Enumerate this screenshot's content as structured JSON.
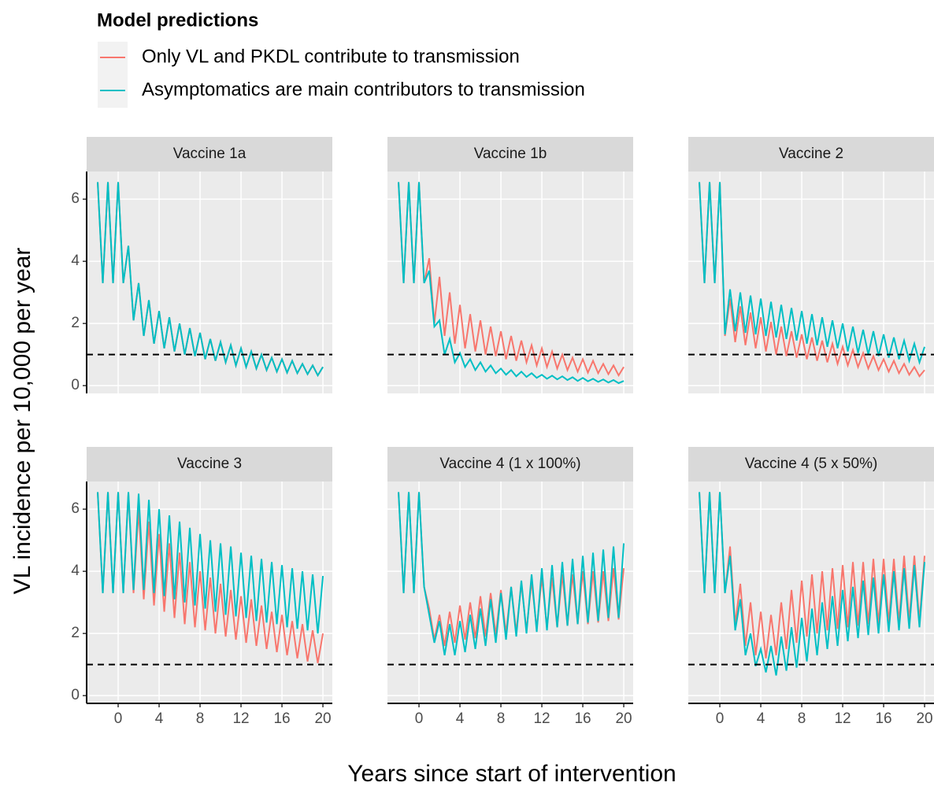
{
  "chart_data": {
    "type": "line",
    "legend_title": "Model predictions",
    "legend_position": "top-left",
    "x_label": "Years since start of intervention",
    "y_label": "VL incidence per 10,000 per year",
    "series": [
      {
        "name": "Only VL and PKDL contribute to transmission",
        "color": "#F8766D"
      },
      {
        "name": "Asymptomatics are main contributors to transmission",
        "color": "#00BFC4"
      }
    ],
    "xlim": [
      -3.08,
      20.92
    ],
    "xticks": [
      0,
      4,
      8,
      12,
      16,
      20
    ],
    "ylim": [
      -0.25,
      6.89
    ],
    "yticks": [
      0,
      2,
      4,
      6
    ],
    "hline": 1,
    "grid": true,
    "x": [
      -2,
      -1.5,
      -1,
      -0.5,
      0,
      0.5,
      1,
      1.5,
      2,
      2.5,
      3,
      3.5,
      4,
      4.5,
      5,
      5.5,
      6,
      6.5,
      7,
      7.5,
      8,
      8.5,
      9,
      9.5,
      10,
      10.5,
      11,
      11.5,
      12,
      12.5,
      13,
      13.5,
      14,
      14.5,
      15,
      15.5,
      16,
      16.5,
      17,
      17.5,
      18,
      18.5,
      19,
      19.5,
      20
    ],
    "facets": [
      {
        "title": "Vaccine 1a",
        "series": [
          {
            "values": [
              6.55,
              3.3,
              6.55,
              3.3,
              6.55,
              3.3,
              4.5,
              2.1,
              3.3,
              1.6,
              2.75,
              1.35,
              2.4,
              1.2,
              2.2,
              1.1,
              2.0,
              1.0,
              1.85,
              0.95,
              1.7,
              0.85,
              1.5,
              0.8,
              1.4,
              0.75,
              1.3,
              0.65,
              1.2,
              0.6,
              1.1,
              0.55,
              1.0,
              0.5,
              0.9,
              0.45,
              0.85,
              0.42,
              0.8,
              0.4,
              0.7,
              0.37,
              0.65,
              0.33,
              0.6
            ]
          },
          {
            "values": [
              6.55,
              3.3,
              6.55,
              3.3,
              6.55,
              3.3,
              4.5,
              2.1,
              3.3,
              1.6,
              2.75,
              1.35,
              2.4,
              1.2,
              2.2,
              1.1,
              2.0,
              1.0,
              1.85,
              0.95,
              1.7,
              0.85,
              1.5,
              0.8,
              1.4,
              0.75,
              1.3,
              0.65,
              1.2,
              0.6,
              1.1,
              0.55,
              1.0,
              0.5,
              0.9,
              0.45,
              0.85,
              0.42,
              0.8,
              0.4,
              0.7,
              0.37,
              0.65,
              0.33,
              0.6
            ]
          }
        ]
      },
      {
        "title": "Vaccine 1b",
        "series": [
          {
            "values": [
              6.55,
              3.3,
              6.55,
              3.3,
              6.55,
              3.3,
              4.1,
              2.0,
              3.5,
              1.6,
              3.0,
              1.35,
              2.6,
              1.2,
              2.3,
              1.1,
              2.1,
              1.0,
              1.9,
              0.95,
              1.75,
              0.85,
              1.6,
              0.8,
              1.45,
              0.75,
              1.3,
              0.65,
              1.2,
              0.6,
              1.1,
              0.55,
              1.0,
              0.5,
              0.9,
              0.45,
              0.85,
              0.42,
              0.8,
              0.4,
              0.7,
              0.37,
              0.65,
              0.33,
              0.6
            ]
          },
          {
            "values": [
              6.55,
              3.3,
              6.55,
              3.3,
              6.55,
              3.3,
              3.7,
              1.9,
              2.1,
              1.0,
              1.5,
              0.75,
              1.05,
              0.6,
              0.85,
              0.5,
              0.75,
              0.45,
              0.65,
              0.4,
              0.55,
              0.35,
              0.5,
              0.3,
              0.45,
              0.28,
              0.4,
              0.25,
              0.35,
              0.22,
              0.32,
              0.2,
              0.3,
              0.18,
              0.27,
              0.15,
              0.25,
              0.14,
              0.22,
              0.12,
              0.2,
              0.1,
              0.18,
              0.08,
              0.15
            ]
          }
        ]
      },
      {
        "title": "Vaccine 2",
        "series": [
          {
            "values": [
              6.55,
              3.3,
              6.55,
              3.3,
              6.55,
              1.6,
              2.8,
              1.4,
              2.55,
              1.3,
              2.35,
              1.2,
              2.2,
              1.1,
              2.05,
              1.0,
              1.9,
              0.95,
              1.75,
              0.9,
              1.65,
              0.85,
              1.55,
              0.8,
              1.45,
              0.75,
              1.35,
              0.7,
              1.25,
              0.65,
              1.15,
              0.6,
              1.05,
              0.55,
              0.95,
              0.5,
              0.85,
              0.45,
              0.8,
              0.4,
              0.7,
              0.35,
              0.6,
              0.3,
              0.5
            ]
          },
          {
            "values": [
              6.55,
              3.3,
              6.55,
              3.3,
              6.55,
              1.65,
              3.1,
              1.75,
              3.0,
              1.7,
              2.9,
              1.65,
              2.8,
              1.6,
              2.7,
              1.55,
              2.6,
              1.5,
              2.5,
              1.45,
              2.4,
              1.35,
              2.3,
              1.3,
              2.2,
              1.25,
              2.1,
              1.2,
              2.0,
              1.1,
              1.9,
              1.05,
              1.8,
              1.0,
              1.75,
              0.95,
              1.65,
              0.9,
              1.55,
              0.85,
              1.45,
              0.8,
              1.35,
              0.75,
              1.25
            ]
          }
        ]
      },
      {
        "title": "Vaccine 3",
        "series": [
          {
            "values": [
              6.55,
              3.3,
              6.55,
              3.3,
              6.55,
              3.3,
              6.5,
              3.3,
              6.0,
              3.1,
              5.6,
              2.9,
              5.2,
              2.7,
              4.9,
              2.5,
              4.6,
              2.3,
              4.3,
              2.2,
              4.0,
              2.1,
              3.8,
              2.0,
              3.6,
              1.9,
              3.4,
              1.8,
              3.2,
              1.7,
              3.1,
              1.6,
              2.9,
              1.5,
              2.7,
              1.4,
              2.6,
              1.3,
              2.4,
              1.2,
              2.3,
              1.1,
              2.1,
              1.05,
              2.0
            ]
          },
          {
            "values": [
              6.55,
              3.3,
              6.55,
              3.3,
              6.55,
              3.3,
              6.55,
              3.4,
              6.5,
              3.4,
              6.3,
              3.3,
              6.0,
              3.2,
              5.8,
              3.1,
              5.6,
              3.0,
              5.4,
              2.9,
              5.2,
              2.8,
              5.0,
              2.7,
              4.9,
              2.6,
              4.8,
              2.55,
              4.6,
              2.5,
              4.5,
              2.4,
              4.4,
              2.35,
              4.3,
              2.3,
              4.2,
              2.2,
              4.1,
              2.15,
              4.0,
              2.1,
              3.9,
              2.0,
              3.85
            ]
          }
        ]
      },
      {
        "title": "Vaccine 4 (1 x 100%)",
        "series": [
          {
            "values": [
              6.55,
              3.3,
              6.55,
              3.3,
              6.55,
              3.5,
              2.8,
              1.8,
              2.6,
              1.6,
              2.7,
              1.7,
              2.9,
              1.8,
              3.0,
              1.85,
              3.2,
              1.9,
              3.3,
              1.95,
              3.4,
              2.0,
              3.5,
              2.05,
              3.6,
              2.1,
              3.7,
              2.15,
              3.8,
              2.2,
              3.8,
              2.2,
              3.9,
              2.25,
              3.9,
              2.3,
              4.0,
              2.3,
              4.0,
              2.35,
              4.0,
              2.4,
              4.1,
              2.45,
              4.1
            ]
          },
          {
            "values": [
              6.55,
              3.3,
              6.55,
              3.3,
              6.55,
              3.5,
              2.6,
              1.7,
              2.4,
              1.3,
              2.3,
              1.3,
              2.4,
              1.4,
              2.6,
              1.5,
              2.8,
              1.6,
              3.1,
              1.7,
              3.3,
              1.8,
              3.5,
              1.9,
              3.7,
              2.0,
              3.9,
              2.05,
              4.1,
              2.1,
              4.2,
              2.2,
              4.3,
              2.25,
              4.4,
              2.3,
              4.5,
              2.35,
              4.6,
              2.4,
              4.7,
              2.5,
              4.8,
              2.5,
              4.9
            ]
          }
        ]
      },
      {
        "title": "Vaccine 4 (5 x 50%)",
        "series": [
          {
            "values": [
              6.55,
              3.3,
              6.55,
              3.3,
              6.55,
              3.3,
              4.8,
              2.3,
              3.6,
              1.6,
              3.0,
              1.3,
              2.7,
              1.2,
              2.6,
              1.3,
              3.0,
              1.5,
              3.4,
              1.7,
              3.7,
              1.9,
              3.9,
              2.0,
              4.0,
              2.1,
              4.1,
              2.15,
              4.2,
              2.2,
              4.3,
              2.25,
              4.3,
              2.3,
              4.4,
              2.3,
              4.4,
              2.35,
              4.4,
              2.35,
              4.5,
              2.4,
              4.5,
              2.4,
              4.5
            ]
          },
          {
            "values": [
              6.55,
              3.3,
              6.55,
              3.3,
              6.55,
              3.3,
              4.5,
              2.1,
              3.1,
              1.3,
              2.0,
              0.95,
              1.5,
              0.75,
              1.6,
              0.65,
              1.9,
              0.8,
              2.2,
              0.9,
              2.5,
              1.1,
              2.8,
              1.3,
              3.0,
              1.5,
              3.2,
              1.6,
              3.4,
              1.75,
              3.5,
              1.85,
              3.7,
              1.95,
              3.8,
              2.0,
              3.9,
              2.05,
              4.0,
              2.1,
              4.1,
              2.15,
              4.2,
              2.2,
              4.3
            ]
          }
        ]
      }
    ]
  }
}
